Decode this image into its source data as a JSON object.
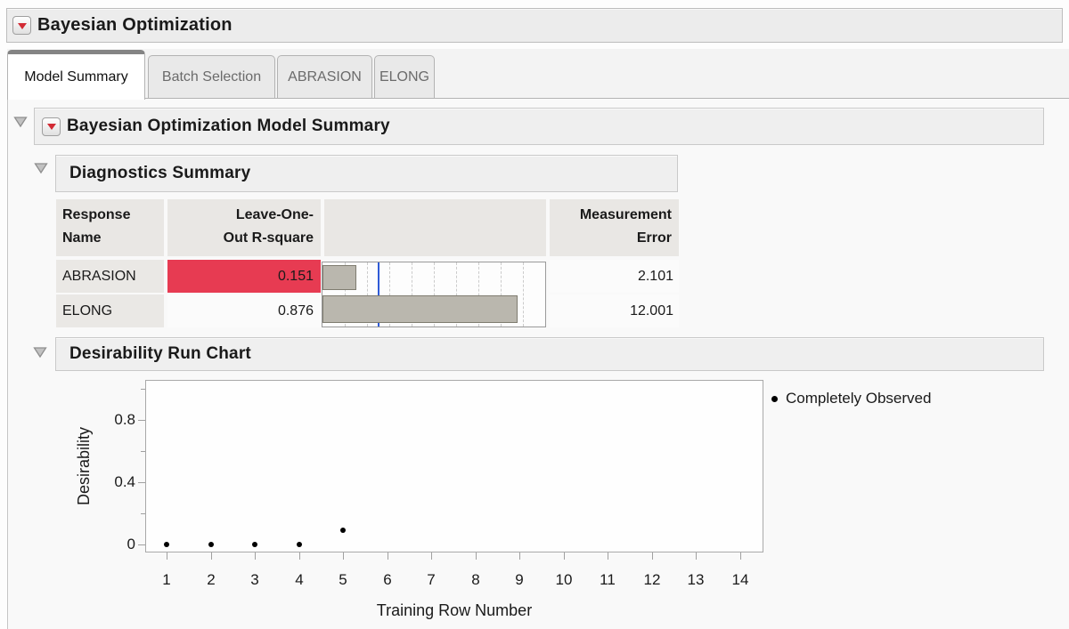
{
  "window": {
    "title": "Bayesian Optimization"
  },
  "tabs": {
    "items": [
      {
        "label": "Model Summary",
        "active": true
      },
      {
        "label": "Batch Selection",
        "active": false
      },
      {
        "label": "ABRASION",
        "active": false
      },
      {
        "label": "ELONG",
        "active": false
      }
    ]
  },
  "sections": {
    "model_summary": {
      "title": "Bayesian Optimization Model Summary"
    },
    "diagnostics": {
      "title": "Diagnostics Summary"
    },
    "run_chart": {
      "title": "Desirability Run Chart"
    }
  },
  "diagnostics_table": {
    "header": {
      "response_line1": "Response",
      "response_line2": "Name",
      "rsq_line1": "Leave-One-",
      "rsq_line2": "Out R-square",
      "measurement_line1": "Measurement",
      "measurement_line2": "Error"
    },
    "rows": [
      {
        "response": "ABRASION",
        "rsq": "0.151",
        "flagged": true,
        "measurement_error": "2.101"
      },
      {
        "response": "ELONG",
        "rsq": "0.876",
        "flagged": false,
        "measurement_error": "12.001"
      }
    ]
  },
  "chart_data": [
    {
      "type": "bar",
      "title": "Leave-One-Out R-square diagnostic bars",
      "orientation": "horizontal",
      "categories": [
        "ABRASION",
        "ELONG"
      ],
      "values": [
        0.151,
        0.876
      ],
      "xlim": [
        0,
        1
      ],
      "gridline_step": 0.1,
      "reference_line": 0.25
    },
    {
      "type": "scatter",
      "title": "Desirability Run Chart",
      "xlabel": "Training Row Number",
      "ylabel": "Desirability",
      "x": [
        1,
        2,
        3,
        4,
        5
      ],
      "y": [
        0,
        0,
        0,
        0,
        0.09
      ],
      "xticks": [
        1,
        2,
        3,
        4,
        5,
        6,
        7,
        8,
        9,
        10,
        11,
        12,
        13,
        14
      ],
      "yticks_major": [
        0,
        0.4,
        0.8
      ],
      "yticks_minor": [
        0.2,
        0.6,
        1.0
      ],
      "xlim": [
        0.5,
        14.5
      ],
      "ylim": [
        0,
        1.07
      ],
      "grid": false,
      "legend_position": "right-top",
      "legend": [
        {
          "label": "Completely Observed",
          "marker": "filled-circle",
          "color": "#000000"
        }
      ]
    }
  ],
  "colors": {
    "flag_red": "#e73b52",
    "reference_blue": "#2f5bd7",
    "bar_fill": "#bab7ae",
    "bar_border": "#7f7c70",
    "red_triangle": "#d22b35",
    "header_bar_bg": "#efefef",
    "cell_header_bg": "#e9e7e4"
  }
}
